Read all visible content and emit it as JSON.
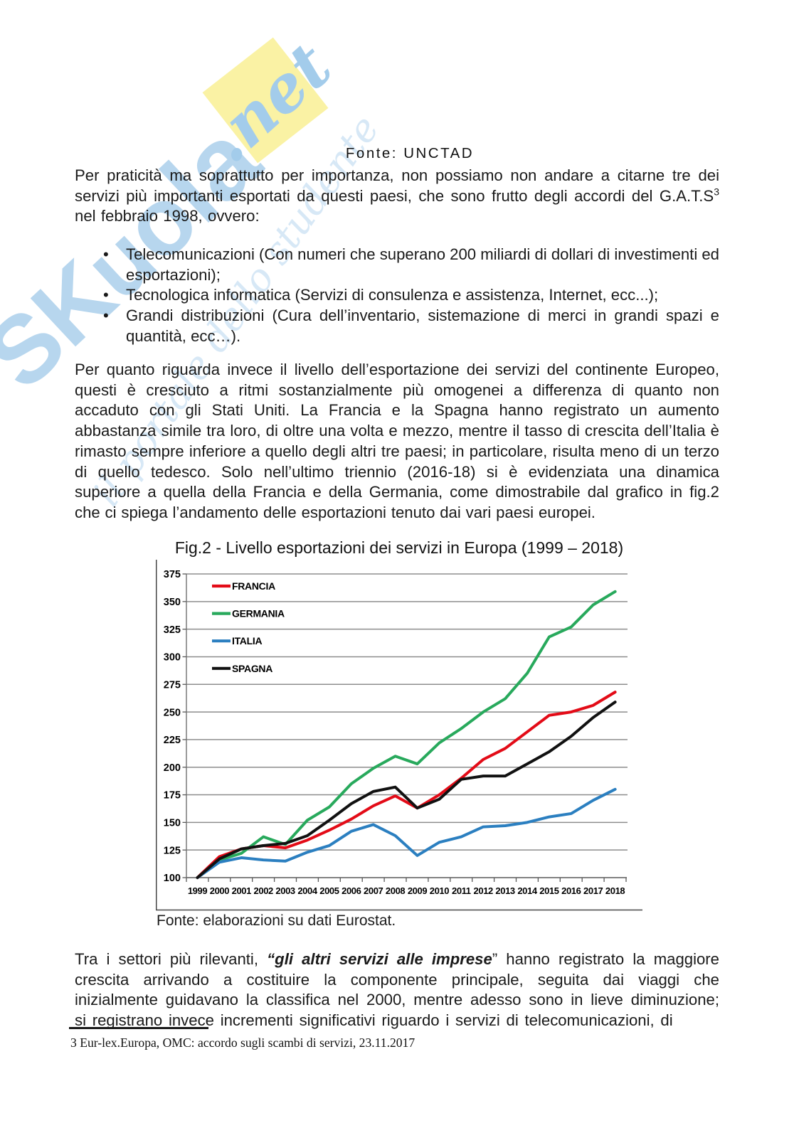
{
  "watermark": {
    "word_part1": "SK",
    "word_part2": "u",
    "word_part3": "o",
    "word_part4": "l",
    "word_part5": "a",
    "net": ".net",
    "script": "il portale dello studente",
    "blue": "#b7d6ee",
    "yellow": "#faf2a4"
  },
  "header": {
    "source_caption": "Fonte: UNCTAD"
  },
  "para1": {
    "before_sup": "Per praticità ma soprattutto per importanza, non possiamo non andare a citarne tre dei servizi più importanti esportati da questi paesi, che sono frutto degli accordi del G.A.T.S",
    "sup": "3",
    "after_sup": "nel febbraio 1998, ovvero:"
  },
  "bullets": {
    "marker": "•",
    "items": [
      "Telecomunicazioni (Con numeri che superano 200 miliardi di dollari di investimenti ed esportazioni);",
      "Tecnologica informatica (Servizi di consulenza e assistenza, Internet, ecc...);",
      "Grandi distribuzioni (Cura dell’inventario, sistemazione di merci in grandi spazi e quantità, ecc…)."
    ]
  },
  "para2": "Per quanto riguarda invece il livello dell’esportazione dei servizi del continente Europeo, questi è cresciuto a ritmi sostanzialmente più omogenei a differenza di quanto non accaduto con gli Stati Uniti. La Francia e la Spagna hanno registrato un aumento abbastanza simile tra loro, di oltre una volta e mezzo, mentre il tasso di crescita dell’Italia è rimasto sempre inferiore a quello degli altri tre paesi; in particolare, risulta meno di un terzo di quello tedesco. Solo nell’ultimo triennio (2016-18) si è evidenziata una dinamica superiore a quella della Francia e della Germania, come dimostrabile dal grafico in fig.2 che ci spiega l’andamento delle esportazioni tenuto dai vari paesi europei.",
  "figure": {
    "caption": "Fig.2 - Livello esportazioni dei servizi in Europa (1999 – 2018)",
    "source": "Fonte: elaborazioni su dati Eurostat."
  },
  "chart_data": {
    "type": "line",
    "x": [
      1999,
      2000,
      2001,
      2002,
      2003,
      2004,
      2005,
      2006,
      2007,
      2008,
      2009,
      2010,
      2011,
      2012,
      2013,
      2014,
      2015,
      2016,
      2017,
      2018
    ],
    "series": [
      {
        "name": "FRANCIA",
        "color": "#e30b17",
        "values": [
          100,
          119,
          126,
          129,
          127,
          134,
          143,
          153,
          165,
          174,
          163,
          175,
          190,
          207,
          217,
          232,
          247,
          250,
          256,
          268
        ]
      },
      {
        "name": "GERMANIA",
        "color": "#28a95c",
        "values": [
          100,
          116,
          122,
          137,
          130,
          152,
          164,
          185,
          199,
          210,
          203,
          222,
          235,
          250,
          262,
          285,
          318,
          327,
          347,
          359
        ]
      },
      {
        "name": "ITALIA",
        "color": "#2b7fc0",
        "values": [
          100,
          114,
          118,
          116,
          115,
          123,
          129,
          142,
          148,
          138,
          120,
          132,
          137,
          146,
          147,
          150,
          155,
          158,
          170,
          180
        ]
      },
      {
        "name": "SPAGNA",
        "color": "#111111",
        "values": [
          100,
          117,
          126,
          129,
          131,
          138,
          152,
          167,
          178,
          182,
          163,
          171,
          189,
          192,
          192,
          203,
          214,
          228,
          245,
          259
        ]
      }
    ],
    "ylim": [
      100,
      375
    ],
    "ytick": 25,
    "grid": true,
    "legend_position": "top-left",
    "title": "Fig.2 - Livello esportazioni dei servizi in Europa (1999 – 2018)",
    "xlabel": "",
    "ylabel": ""
  },
  "para3": {
    "before": "Tra i settori più rilevanti, ",
    "bold_italic": "“gli altri servizi alle imprese",
    "after": "” hanno registrato la maggiore crescita arrivando a costituire la componente principale, seguita dai viaggi che inizialmente guidavano la classifica nel 2000, mentre adesso sono in lieve diminuzione; si registrano invece incrementi significativi riguardo i servizi di telecomunicazioni, di"
  },
  "footnote": "3 Eur-lex.Europa, OMC: accordo sugli scambi di servizi, 23.11.2017"
}
